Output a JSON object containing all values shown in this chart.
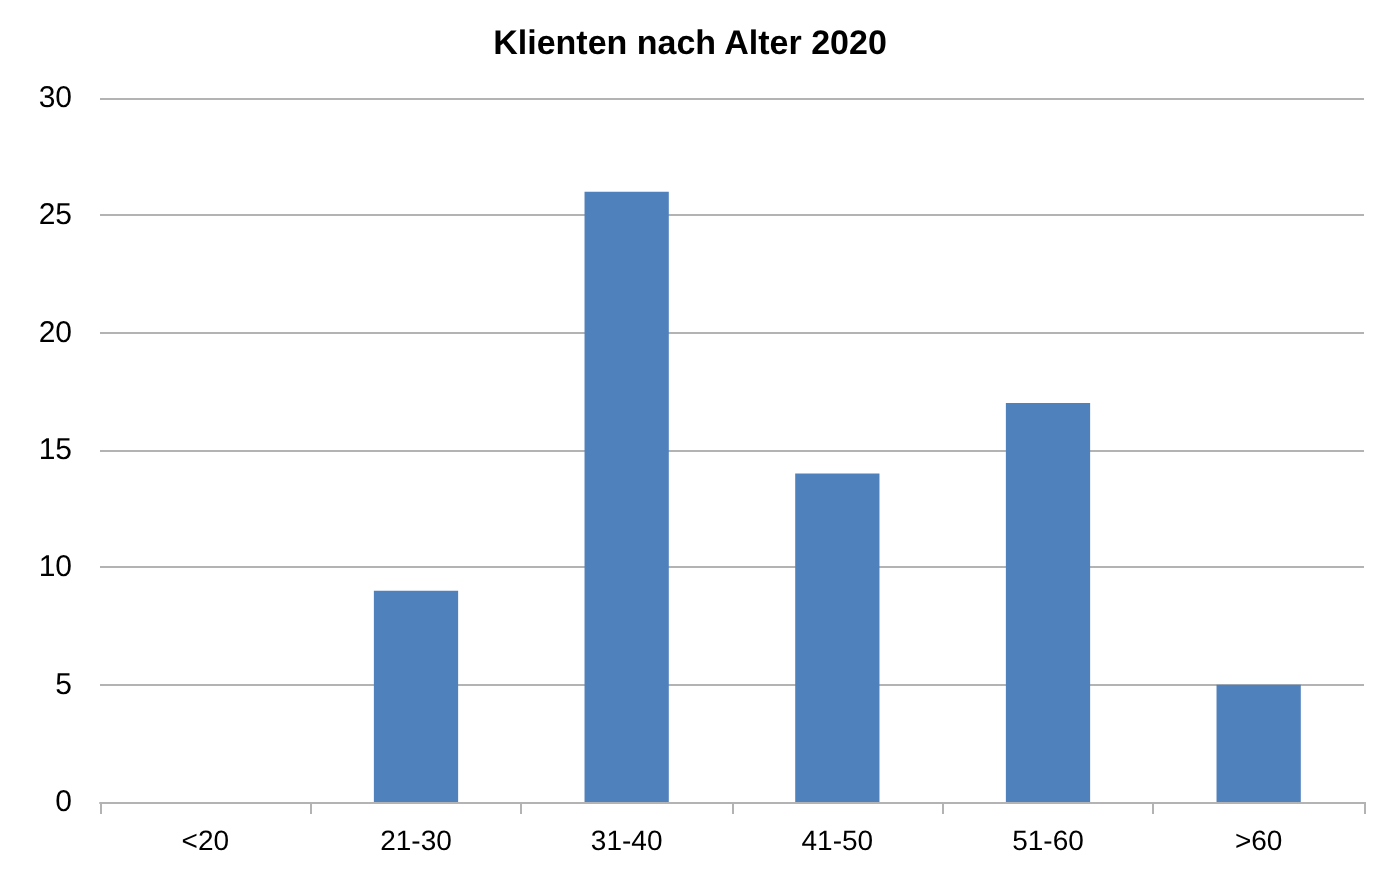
{
  "chart_data": {
    "type": "bar",
    "title": "Klienten nach Alter 2020",
    "categories": [
      "<20",
      "21-30",
      "31-40",
      "41-50",
      "51-60",
      ">60"
    ],
    "values": [
      0,
      9,
      26,
      14,
      17,
      5
    ],
    "color": "#4f81bd",
    "ylim": [
      0,
      30
    ],
    "yticks": [
      0,
      5,
      10,
      15,
      20,
      25,
      30
    ],
    "grid": "y"
  }
}
